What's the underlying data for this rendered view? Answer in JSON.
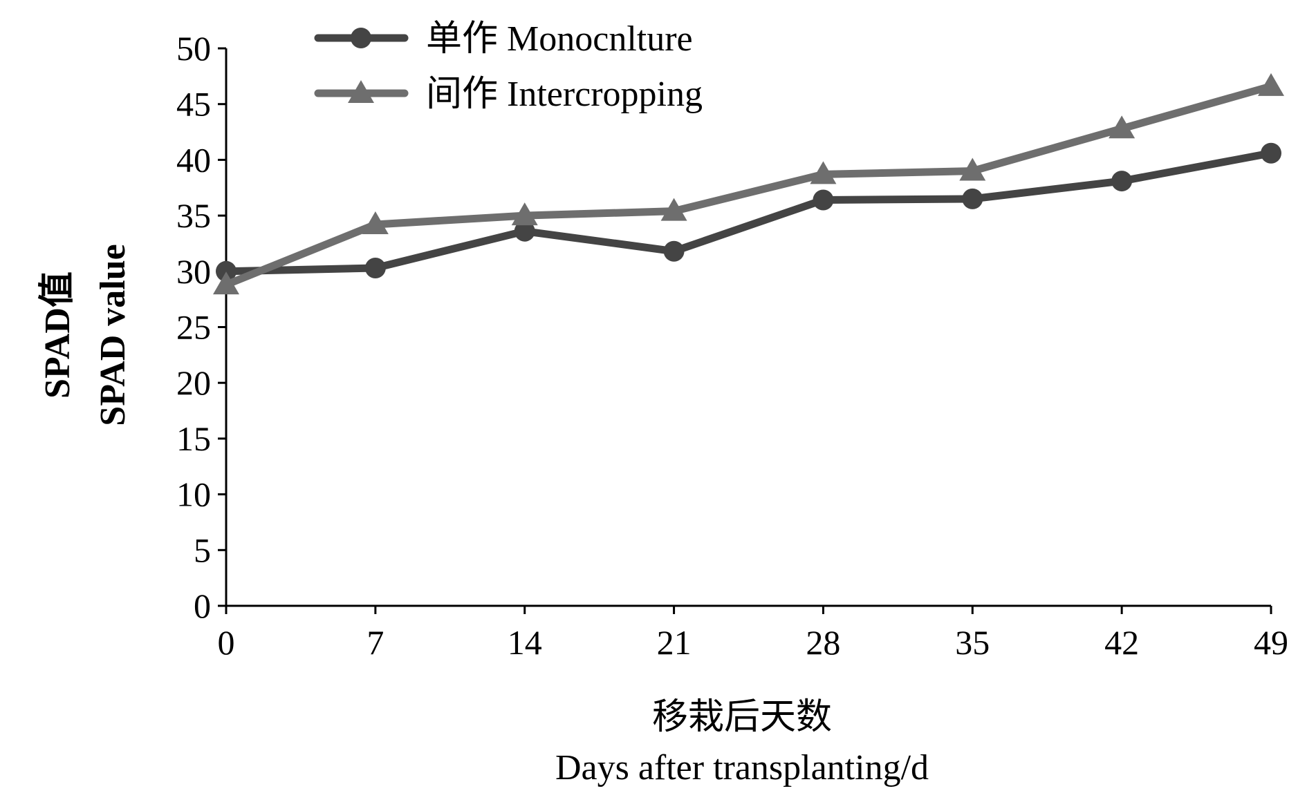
{
  "chart_data": {
    "type": "line",
    "title": "",
    "xlabel_cn": "移栽后天数",
    "xlabel": "Days after transplanting/d",
    "ylabel_cn": "SPAD值",
    "ylabel": "SPAD value",
    "x": [
      0,
      7,
      14,
      21,
      28,
      35,
      42,
      49
    ],
    "x_ticks": [
      "0",
      "7",
      "14",
      "21",
      "28",
      "35",
      "42",
      "49"
    ],
    "ylim": [
      0,
      50
    ],
    "y_ticks": [
      "0",
      "5",
      "10",
      "15",
      "20",
      "25",
      "30",
      "35",
      "40",
      "45",
      "50"
    ],
    "grid": false,
    "legend_position": "top-left",
    "series": [
      {
        "name": "单作 Monocnlture",
        "marker": "circle",
        "color": "#444444",
        "values": [
          30.0,
          30.3,
          33.6,
          31.8,
          36.4,
          36.5,
          38.1,
          40.6
        ]
      },
      {
        "name": "间作 Intercropping",
        "marker": "triangle",
        "color": "#6e6e6e",
        "values": [
          28.8,
          34.2,
          35.0,
          35.4,
          38.7,
          39.0,
          42.8,
          46.6
        ]
      }
    ]
  }
}
